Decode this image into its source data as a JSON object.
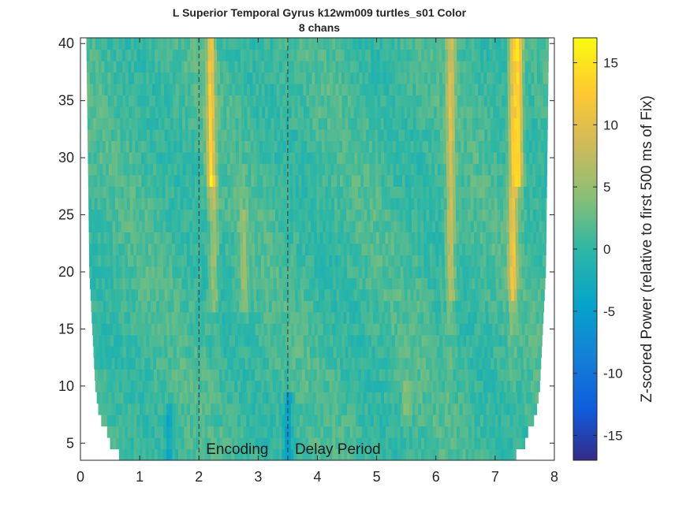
{
  "chart_data": {
    "type": "heatmap",
    "title_line1": "L Superior Temporal Gyrus k12wm009 turtles_s01 Color",
    "title_line2": "8 chans",
    "xlabel": "",
    "ylabel": "",
    "xlim": [
      0,
      8
    ],
    "ylim": [
      3.5,
      40.5
    ],
    "xticks": [
      "0",
      "1",
      "2",
      "3",
      "4",
      "5",
      "6",
      "7",
      "8"
    ],
    "yticks": [
      "5",
      "10",
      "15",
      "20",
      "25",
      "30",
      "35",
      "40"
    ],
    "clim": [
      -17,
      17
    ],
    "colormap": "parula",
    "colorbar": {
      "label": "Z-scored Power (relative to first 500 ms of Fix)",
      "ticks": [
        "15",
        "10",
        "5",
        "0",
        "-5",
        "-10",
        "-15"
      ]
    },
    "event_lines": [
      {
        "x": 2.0,
        "label": "Encoding"
      },
      {
        "x": 3.5,
        "label": "Delay Period"
      }
    ],
    "data_extent": {
      "freq_range": [
        4,
        40
      ],
      "time_range": [
        0.1,
        7.9
      ],
      "note_low_freq_start": {
        "4": 0.65,
        "5": 0.5,
        "6": 0.45,
        "7": 0.35,
        "8": 0.3,
        "10": 0.25,
        "15": 0.2,
        "20": 0.15,
        "40": 0.1
      }
    },
    "hotspots": [
      {
        "time": 2.2,
        "freq_range": [
          28,
          40
        ],
        "z": 11
      },
      {
        "time": 2.25,
        "freq_range": [
          17,
          28
        ],
        "z": 5
      },
      {
        "time": 2.75,
        "freq_range": [
          17,
          25
        ],
        "z": 4
      },
      {
        "time": 6.25,
        "freq_range": [
          18,
          40
        ],
        "z": 8
      },
      {
        "time": 7.3,
        "freq_range": [
          18,
          40
        ],
        "z": 10
      },
      {
        "time": 7.4,
        "freq_range": [
          28,
          40
        ],
        "z": 12
      },
      {
        "time": 3.5,
        "freq_range": [
          4,
          9
        ],
        "z": -6
      },
      {
        "time": 1.5,
        "freq_range": [
          4,
          8
        ],
        "z": -4
      },
      {
        "time": 5.5,
        "freq_range": [
          7,
          10
        ],
        "z": 3
      }
    ]
  }
}
